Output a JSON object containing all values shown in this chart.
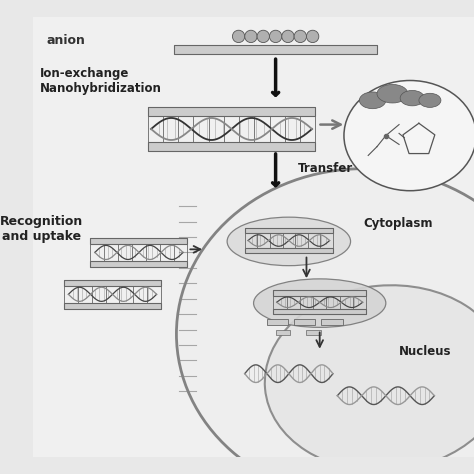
{
  "bg_color": "#e8e8e8",
  "text_anion": "anion",
  "text_ion_exchange": "Ion-exchange\nNanohybridization",
  "text_transfer": "Transfer",
  "text_recognition": "Recognition\nand uptake",
  "text_cytoplasm": "Cytoplasm",
  "text_nucleus": "Nucleus",
  "layer_color": "#aaaaaa",
  "layer_color2": "#cccccc",
  "layer_edge": "#666666",
  "dna_color1": "#444444",
  "dna_color2": "#888888",
  "arrow_color": "#111111",
  "bead_color": "#999999",
  "cell_color": "#cccccc",
  "molecule_color": "#666666",
  "white": "#ffffff"
}
